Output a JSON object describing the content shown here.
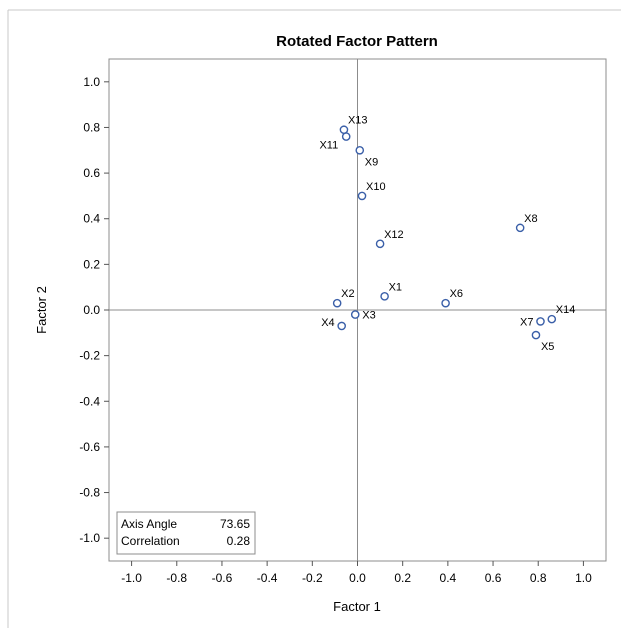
{
  "chart_data": {
    "type": "scatter",
    "title": "Rotated Factor Pattern",
    "xlabel": "Factor 1",
    "ylabel": "Factor 2",
    "xlim": [
      -1.1,
      1.1
    ],
    "ylim": [
      -1.1,
      1.1
    ],
    "xticks": [
      -1.0,
      -0.8,
      -0.6,
      -0.4,
      -0.2,
      0.0,
      0.2,
      0.4,
      0.6,
      0.8,
      1.0
    ],
    "yticks": [
      -1.0,
      -0.8,
      -0.6,
      -0.4,
      -0.2,
      0.0,
      0.2,
      0.4,
      0.6,
      0.8,
      1.0
    ],
    "xtick_labels": [
      "-1.0",
      "-0.8",
      "-0.6",
      "-0.4",
      "-0.2",
      "0.0",
      "0.2",
      "0.4",
      "0.6",
      "0.8",
      "1.0"
    ],
    "ytick_labels": [
      "-1.0",
      "-0.8",
      "-0.6",
      "-0.4",
      "-0.2",
      "0.0",
      "0.2",
      "0.4",
      "0.6",
      "0.8",
      "1.0"
    ],
    "grid": false,
    "reference_lines": {
      "x": 0,
      "y": 0
    },
    "marker_color": "#3a5fa8",
    "points": [
      {
        "label": "X1",
        "x": 0.12,
        "y": 0.06,
        "label_pos": "upper-right"
      },
      {
        "label": "X2",
        "x": -0.09,
        "y": 0.03,
        "label_pos": "upper-right"
      },
      {
        "label": "X3",
        "x": -0.01,
        "y": -0.02,
        "label_pos": "right"
      },
      {
        "label": "X4",
        "x": -0.07,
        "y": -0.07,
        "label_pos": "upper-left"
      },
      {
        "label": "X5",
        "x": 0.79,
        "y": -0.11,
        "label_pos": "lower-right"
      },
      {
        "label": "X6",
        "x": 0.39,
        "y": 0.03,
        "label_pos": "upper-right"
      },
      {
        "label": "X7",
        "x": 0.81,
        "y": -0.05,
        "label_pos": "left"
      },
      {
        "label": "X8",
        "x": 0.72,
        "y": 0.36,
        "label_pos": "upper-right"
      },
      {
        "label": "X9",
        "x": 0.01,
        "y": 0.7,
        "label_pos": "lower-right"
      },
      {
        "label": "X10",
        "x": 0.02,
        "y": 0.5,
        "label_pos": "upper-right"
      },
      {
        "label": "X11",
        "x": -0.05,
        "y": 0.76,
        "label_pos": "lower-left"
      },
      {
        "label": "X12",
        "x": 0.1,
        "y": 0.29,
        "label_pos": "upper-right"
      },
      {
        "label": "X13",
        "x": -0.06,
        "y": 0.79,
        "label_pos": "upper-right"
      },
      {
        "label": "X14",
        "x": 0.86,
        "y": -0.04,
        "label_pos": "upper-right"
      }
    ],
    "inset": {
      "position": "bottom-left",
      "rows": [
        {
          "label": "Axis Angle",
          "value": "73.65"
        },
        {
          "label": "Correlation",
          "value": "0.28"
        }
      ]
    }
  }
}
